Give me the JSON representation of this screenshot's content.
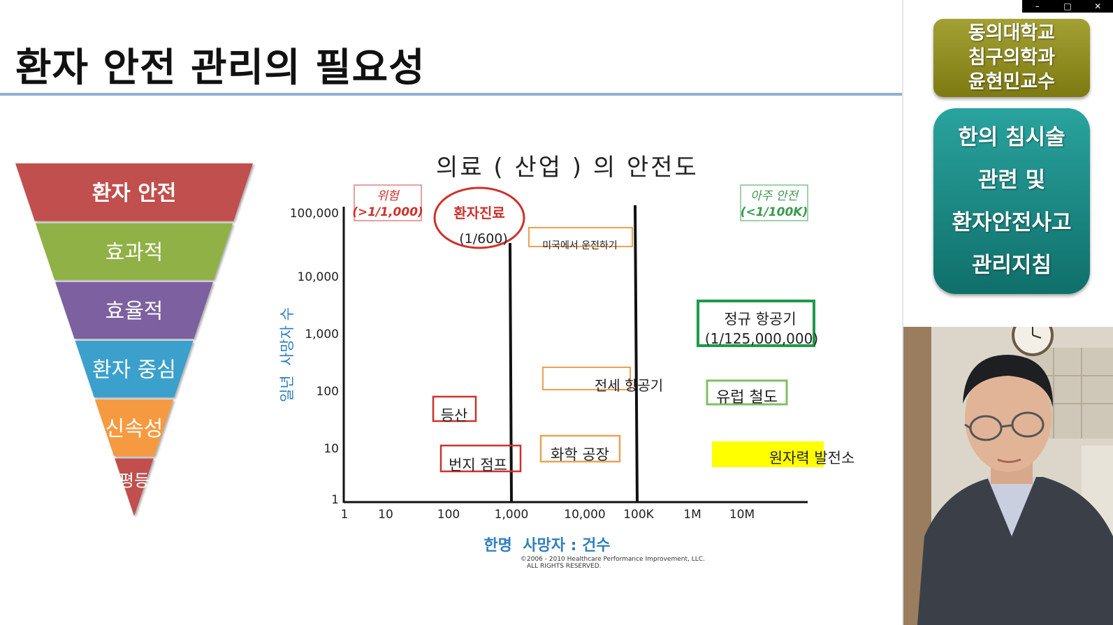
{
  "window_controls": [
    "–",
    "□",
    "✕"
  ],
  "slide": {
    "title": "환자 안전 관리의 필요성",
    "funnel": [
      {
        "label": "환자 안전",
        "color": "#c0504d"
      },
      {
        "label": "효과적",
        "color": "#8fb144"
      },
      {
        "label": "효율적",
        "color": "#7d60a0"
      },
      {
        "label": "환자 중심",
        "color": "#3aa0cc"
      },
      {
        "label": "신속성",
        "color": "#f59a3f"
      },
      {
        "label": "평등",
        "color": "#c0504d"
      }
    ]
  },
  "chart_data": {
    "type": "scatter",
    "title": "의료 ( 산업 ) 의 안전도",
    "xlabel": "한명  사망자 : 건수",
    "ylabel": "일년  사망자 수",
    "x_ticks": [
      "1",
      "10",
      "100",
      "1,000",
      "10,000",
      "100K",
      "1M",
      "10M"
    ],
    "y_ticks": [
      "1",
      "10",
      "100",
      "1,000",
      "10,000",
      "100,000"
    ],
    "x_scale": "log",
    "y_scale": "log",
    "zone_labels": {
      "danger": {
        "line1": "위험",
        "line2": "(>1/1,000)",
        "color": "#d0302a"
      },
      "safe": {
        "line1": "아주 안전",
        "line2": "(<1/100K)",
        "color": "#3a9a50"
      }
    },
    "boundary_lines_x": [
      1000,
      100000
    ],
    "items": [
      {
        "label": "환자진료",
        "sub": "(1/600)",
        "style": "ellipse",
        "color": "#d0302a"
      },
      {
        "label": "미국에서 운전하기",
        "style": "box",
        "color": "#f0a050"
      },
      {
        "label": "정규 항공기",
        "sub": "(1/125,000,000)",
        "style": "box",
        "color": "#1f9a4a"
      },
      {
        "label": "전세 항공기",
        "style": "box",
        "color": "#f0a050"
      },
      {
        "label": "유럽 철도",
        "style": "box",
        "color": "#80c060"
      },
      {
        "label": "등산",
        "style": "box",
        "color": "#d0302a"
      },
      {
        "label": "번지 점프",
        "style": "box",
        "color": "#d0302a"
      },
      {
        "label": "화학 공장",
        "style": "box",
        "color": "#f0a050"
      },
      {
        "label": "원자력 발전소",
        "style": "fill",
        "color": "#ffff00"
      }
    ],
    "copyright_line1": "©2006 - 2010 Healthcare Performance Improvement, LLC.",
    "copyright_line2": "ALL RIGHTS RESERVED."
  },
  "side": {
    "badge1_lines": [
      "동의대학교",
      "침구의학과",
      "윤현민교수"
    ],
    "badge2_lines": [
      "한의 침시술",
      "관련 및",
      "환자안전사고",
      "관리지침"
    ]
  }
}
